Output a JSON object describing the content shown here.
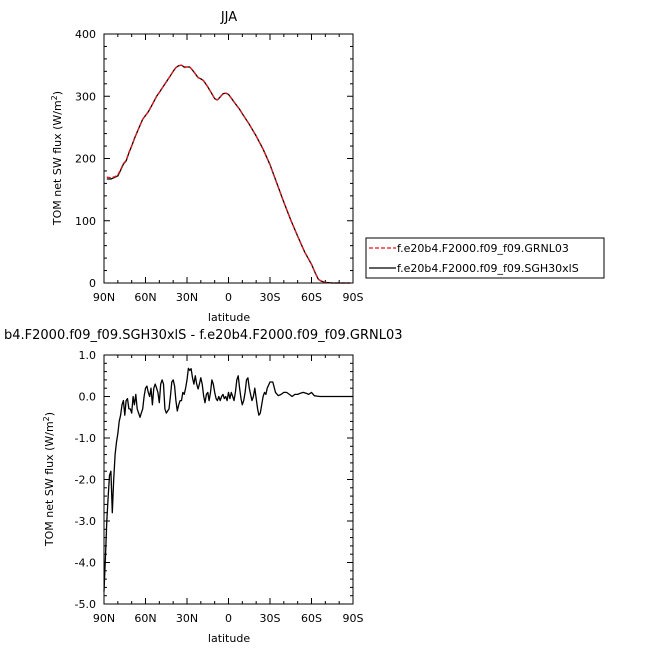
{
  "chart_data": [
    {
      "type": "line",
      "title": "JJA",
      "xlabel": "latitude",
      "ylabel_main": "TOM net SW flux (W/m",
      "ylabel_sup": "2",
      "ylabel_end": ")",
      "xlim": [
        90,
        -90
      ],
      "ylim": [
        0,
        400
      ],
      "xticks": [
        90,
        60,
        30,
        0,
        -30,
        -60,
        -90
      ],
      "xtick_labels": [
        "90N",
        "60N",
        "30N",
        "0",
        "30S",
        "60S",
        "90S"
      ],
      "yticks": [
        0,
        100,
        200,
        300,
        400
      ],
      "ytick_labels": [
        "0",
        "100",
        "200",
        "300",
        "400"
      ],
      "legend_position": "right, outside the plot",
      "series": [
        {
          "name": "f.e20b4.F2000.f09_f09.GRNL03",
          "color": "#e8141b",
          "dash": "dashed",
          "x": [
            88,
            85,
            82,
            80,
            78,
            76,
            74,
            72,
            70,
            68,
            65,
            62,
            60,
            58,
            55,
            52,
            50,
            48,
            45,
            42,
            40,
            38,
            36,
            34,
            32,
            30,
            28,
            26,
            24,
            22,
            20,
            18,
            15,
            12,
            10,
            8,
            6,
            4,
            2,
            0,
            -2,
            -4,
            -6,
            -8,
            -10,
            -15,
            -20,
            -25,
            -30,
            -35,
            -40,
            -45,
            -50,
            -55,
            -60,
            -63,
            -65,
            -67,
            -70,
            -75,
            -80,
            -85,
            -88
          ],
          "y": [
            170,
            169,
            171,
            174,
            182,
            192,
            197,
            210,
            220,
            232,
            248,
            263,
            269,
            275,
            287,
            300,
            306,
            313,
            323,
            333,
            340,
            346,
            349,
            350,
            346,
            347,
            347,
            342,
            336,
            330,
            328,
            325,
            315,
            304,
            296,
            294,
            299,
            304,
            305,
            303,
            297,
            291,
            285,
            279,
            272,
            255,
            236,
            215,
            190,
            160,
            130,
            101,
            75,
            50,
            30,
            15,
            6,
            3,
            1,
            0,
            0,
            0,
            0
          ]
        },
        {
          "name": "f.e20b4.F2000.f09_f09.SGH30xlS",
          "color": "#000000",
          "dash": "solid",
          "x": [
            88,
            85,
            82,
            80,
            78,
            76,
            74,
            72,
            70,
            68,
            65,
            62,
            60,
            58,
            55,
            52,
            50,
            48,
            45,
            42,
            40,
            38,
            36,
            34,
            32,
            30,
            28,
            26,
            24,
            22,
            20,
            18,
            15,
            12,
            10,
            8,
            6,
            4,
            2,
            0,
            -2,
            -4,
            -6,
            -8,
            -10,
            -15,
            -20,
            -25,
            -30,
            -35,
            -40,
            -45,
            -50,
            -55,
            -60,
            -63,
            -65,
            -67,
            -70,
            -75,
            -80,
            -85,
            -88
          ],
          "y": [
            167,
            167,
            170,
            172,
            181,
            191,
            196,
            209,
            220,
            232,
            248,
            263,
            269,
            275,
            287,
            300,
            306,
            313,
            323,
            333,
            340,
            346,
            349,
            350,
            347,
            347,
            347,
            342,
            336,
            330,
            328,
            325,
            315,
            304,
            296,
            294,
            299,
            304,
            305,
            303,
            297,
            291,
            285,
            279,
            272,
            255,
            236,
            215,
            190,
            160,
            130,
            101,
            75,
            50,
            30,
            15,
            6,
            3,
            1,
            0,
            0,
            0,
            0
          ]
        }
      ]
    },
    {
      "type": "line",
      "title": "b4.F2000.f09_f09.SGH30xlS - f.e20b4.F2000.f09_f09.GRNL03",
      "xlabel": "latitude",
      "ylabel_main": "TOM net SW flux (W/m",
      "ylabel_sup": "2",
      "ylabel_end": ")",
      "xlim": [
        90,
        -90
      ],
      "ylim": [
        -5.0,
        1.0
      ],
      "xticks": [
        90,
        60,
        30,
        0,
        -30,
        -60,
        -90
      ],
      "xtick_labels": [
        "90N",
        "60N",
        "30N",
        "0",
        "30S",
        "60S",
        "90S"
      ],
      "yticks": [
        1.0,
        0.0,
        -1.0,
        -2.0,
        -3.0,
        -4.0,
        -5.0
      ],
      "ytick_labels": [
        "1.0",
        "0.0",
        "-1.0",
        "-2.0",
        "-3.0",
        "-4.0",
        "-5.0"
      ],
      "series": [
        {
          "color": "#000000",
          "dash": "solid",
          "x": [
            90,
            89,
            88,
            87,
            86,
            85,
            84,
            83,
            82,
            81,
            80,
            79,
            78,
            77,
            76,
            75,
            74,
            73,
            72,
            71,
            70,
            69,
            68,
            67,
            66,
            65,
            64,
            63,
            62,
            61,
            60,
            59,
            58,
            57,
            56,
            55,
            54,
            53,
            52,
            51,
            50,
            49,
            48,
            47,
            46,
            45,
            44,
            43,
            42,
            41,
            40,
            39,
            38,
            37,
            36,
            35,
            34,
            33,
            32,
            31,
            30,
            29,
            28,
            27,
            26,
            25,
            24,
            23,
            22,
            21,
            20,
            19,
            18,
            17,
            16,
            15,
            14,
            13,
            12,
            11,
            10,
            9,
            8,
            7,
            6,
            5,
            4,
            3,
            2,
            1,
            0,
            -1,
            -2,
            -3,
            -4,
            -5,
            -6,
            -7,
            -8,
            -9,
            -10,
            -11,
            -12,
            -13,
            -14,
            -15,
            -16,
            -17,
            -18,
            -19,
            -20,
            -21,
            -22,
            -23,
            -24,
            -25,
            -26,
            -27,
            -28,
            -30,
            -32,
            -34,
            -36,
            -38,
            -40,
            -42,
            -44,
            -46,
            -48,
            -50,
            -52,
            -54,
            -56,
            -58,
            -60,
            -62,
            -64,
            -66,
            -68,
            -70,
            -75,
            -80,
            -85,
            -90
          ],
          "y": [
            -4.7,
            -3.9,
            -3.0,
            -2.4,
            -1.9,
            -1.8,
            -2.8,
            -2.0,
            -1.4,
            -1.1,
            -0.9,
            -0.6,
            -0.45,
            -0.2,
            -0.1,
            -0.45,
            -0.1,
            -0.05,
            -0.3,
            -0.3,
            -0.4,
            0.0,
            -0.2,
            0.05,
            -0.3,
            -0.4,
            -0.5,
            -0.4,
            -0.3,
            0.0,
            0.2,
            0.25,
            0.1,
            0.0,
            0.2,
            -0.2,
            0.2,
            0.3,
            0.2,
            0.1,
            -0.15,
            0.3,
            0.4,
            0.3,
            -0.3,
            -0.4,
            -0.35,
            -0.3,
            0.0,
            0.35,
            0.4,
            0.25,
            -0.1,
            -0.35,
            -0.2,
            -0.1,
            -0.1,
            0.1,
            0.05,
            0.2,
            0.4,
            0.68,
            0.63,
            0.67,
            0.45,
            0.3,
            0.5,
            0.3,
            0.18,
            0.3,
            0.45,
            0.3,
            0.02,
            -0.15,
            0.05,
            0.1,
            -0.1,
            0.1,
            0.4,
            0.3,
            0.1,
            -0.05,
            -0.1,
            0.0,
            -0.1,
            0.0,
            0.05,
            -0.05,
            0.0,
            -0.1,
            0.1,
            -0.05,
            0.1,
            0.0,
            -0.1,
            0.1,
            0.4,
            0.5,
            0.2,
            -0.05,
            -0.2,
            -0.1,
            0.1,
            0.4,
            0.45,
            0.2,
            0.05,
            -0.1,
            0.0,
            0.2,
            -0.05,
            -0.3,
            -0.45,
            -0.4,
            -0.2,
            0.0,
            0.1,
            0.05,
            0.2,
            0.35,
            0.35,
            0.1,
            0.02,
            0.05,
            0.1,
            0.1,
            0.05,
            0.0,
            0.05,
            0.05,
            0.08,
            0.1,
            0.08,
            0.05,
            0.1,
            0.02,
            0.01,
            0.0,
            0.0,
            0.0,
            0.0,
            0.0,
            0.0,
            0.0
          ]
        }
      ]
    }
  ]
}
